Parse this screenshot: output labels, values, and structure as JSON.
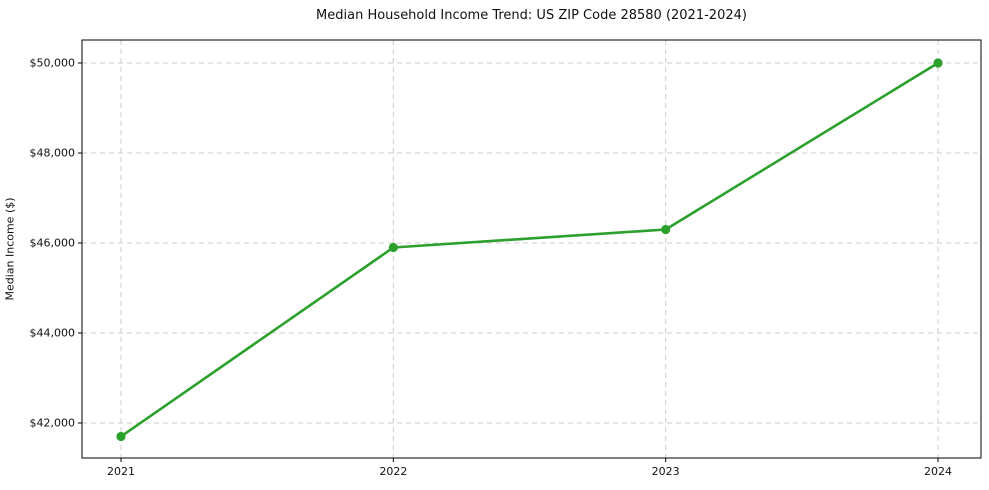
{
  "chart_data": {
    "type": "line",
    "title": "Median Household Income Trend: US ZIP Code 28580 (2021-2024)",
    "xlabel": "",
    "ylabel": "Median Income ($)",
    "categories": [
      "2021",
      "2022",
      "2023",
      "2024"
    ],
    "series": [
      {
        "name": "Median Household Income",
        "values": [
          41700,
          45900,
          46300,
          50000
        ],
        "color": "#2ca02c",
        "marker": "circle"
      }
    ],
    "yticks": [
      42000,
      44000,
      46000,
      48000,
      50000
    ],
    "ytick_labels": [
      "$42,000",
      "$44,000",
      "$46,000",
      "$48,000",
      "$50,000"
    ],
    "ylim": [
      41222,
      50511
    ],
    "grid": true,
    "grid_style": "dashed",
    "grid_color": "#cccccc",
    "axis_color": "#000000",
    "background": "#ffffff",
    "legend": "none"
  }
}
